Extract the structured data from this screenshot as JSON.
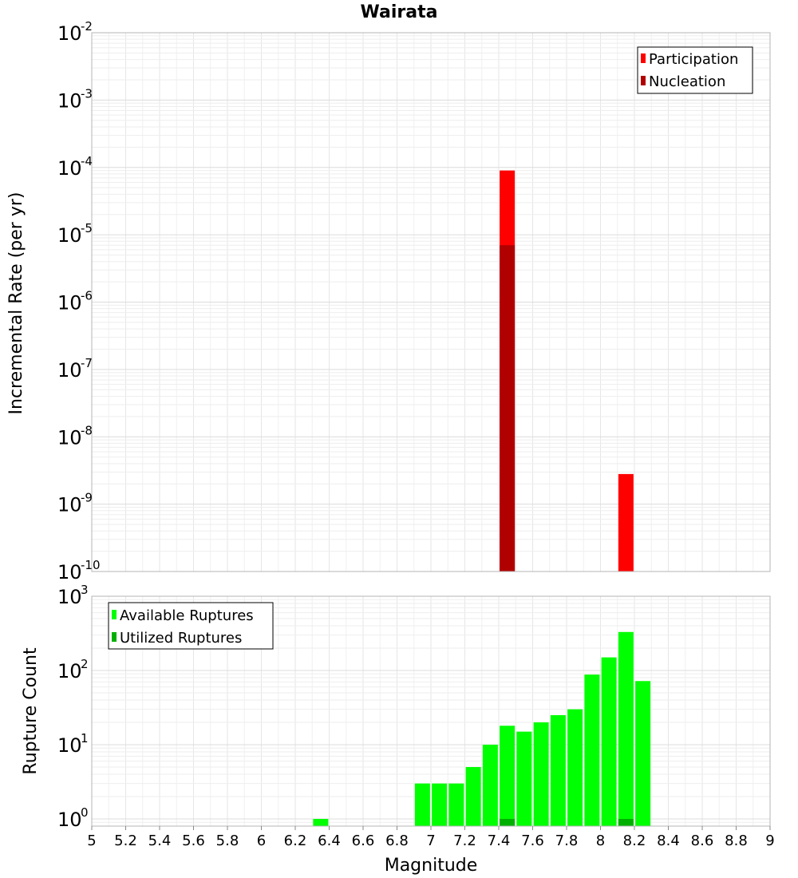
{
  "chart_data": [
    {
      "type": "bar",
      "title": "Wairata",
      "xlabel": "",
      "ylabel": "Incremental Rate (per yr)",
      "yscale": "log",
      "ylim": [
        1e-10,
        0.01
      ],
      "xlim": [
        5,
        9
      ],
      "y_tick_exponents": [
        "-2",
        "-3",
        "-4",
        "-5",
        "-6",
        "-7",
        "-8",
        "-9",
        "-10"
      ],
      "y_tick_base": "10",
      "grid": true,
      "legend_position": "top-right",
      "series": [
        {
          "name": "Participation",
          "color": "#ff0000",
          "points": [
            {
              "x": 7.45,
              "y": 9e-05
            },
            {
              "x": 8.15,
              "y": 2.8e-09
            }
          ]
        },
        {
          "name": "Nucleation",
          "color": "#b00000",
          "points": [
            {
              "x": 7.45,
              "y": 7e-06
            }
          ]
        }
      ]
    },
    {
      "type": "bar",
      "title": "",
      "xlabel": "Magnitude",
      "ylabel": "Rupture Count",
      "yscale": "log",
      "ylim": [
        0.8,
        1000
      ],
      "xlim": [
        5,
        9
      ],
      "x_ticks": [
        "5",
        "5.2",
        "5.4",
        "5.6",
        "5.8",
        "6",
        "6.2",
        "6.4",
        "6.6",
        "6.8",
        "7",
        "7.2",
        "7.4",
        "7.6",
        "7.8",
        "8",
        "8.2",
        "8.4",
        "8.6",
        "8.8",
        "9"
      ],
      "y_tick_exponents": [
        "3",
        "2",
        "1",
        "0"
      ],
      "y_tick_base": "10",
      "grid": true,
      "legend_position": "top-left",
      "series": [
        {
          "name": "Available Ruptures",
          "color": "#00ff00",
          "points": [
            {
              "x": 6.35,
              "y": 1
            },
            {
              "x": 6.95,
              "y": 3
            },
            {
              "x": 7.05,
              "y": 3
            },
            {
              "x": 7.15,
              "y": 3
            },
            {
              "x": 7.25,
              "y": 5
            },
            {
              "x": 7.35,
              "y": 10
            },
            {
              "x": 7.45,
              "y": 18
            },
            {
              "x": 7.55,
              "y": 15
            },
            {
              "x": 7.65,
              "y": 20
            },
            {
              "x": 7.75,
              "y": 25
            },
            {
              "x": 7.85,
              "y": 30
            },
            {
              "x": 7.95,
              "y": 88
            },
            {
              "x": 8.05,
              "y": 150
            },
            {
              "x": 8.15,
              "y": 330
            },
            {
              "x": 8.25,
              "y": 72
            }
          ]
        },
        {
          "name": "Utilized Ruptures",
          "color": "#00b000",
          "points": [
            {
              "x": 7.45,
              "y": 1
            },
            {
              "x": 8.15,
              "y": 1
            }
          ]
        }
      ]
    }
  ]
}
